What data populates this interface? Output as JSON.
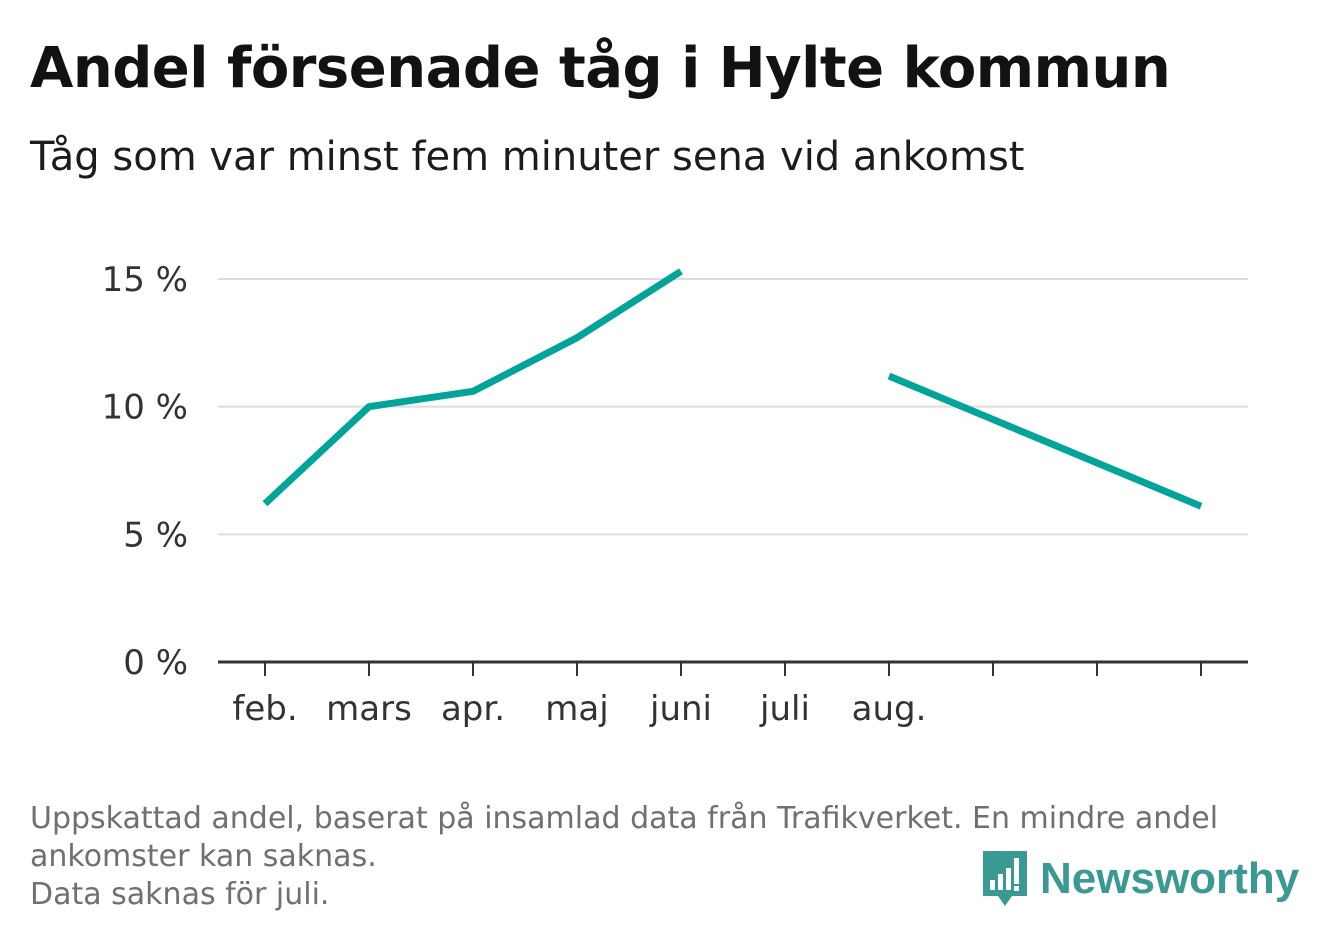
{
  "header": {
    "title": "Andel försenade tåg i Hylte kommun",
    "subtitle": "Tåg som var minst fem minuter sena vid ankomst"
  },
  "chart_data": {
    "type": "line",
    "categories": [
      "feb.",
      "mars",
      "apr.",
      "maj",
      "juni",
      "juli",
      "aug.",
      "",
      "",
      ""
    ],
    "series": [
      {
        "values": [
          6.2,
          10.0,
          10.6,
          12.7,
          15.3,
          null,
          11.2,
          9.5,
          7.8,
          6.1
        ]
      }
    ],
    "yticks": [
      {
        "value": 0,
        "label": "0 %"
      },
      {
        "value": 5,
        "label": "5 %"
      },
      {
        "value": 10,
        "label": "10 %"
      },
      {
        "value": 15,
        "label": "15 %"
      }
    ],
    "ylim": [
      0,
      15
    ],
    "grid": true,
    "line_color": "#00a499"
  },
  "footer": {
    "note_line1": "Uppskattad andel, baserat på insamlad data från Trafikverket. En mindre andel ankomster kan saknas.",
    "note_line2": "Data saknas för juli.",
    "brand": "Newsworthy",
    "brand_icon": "bar-chart-speech-bubble-icon",
    "brand_color": "#3a9a93"
  }
}
